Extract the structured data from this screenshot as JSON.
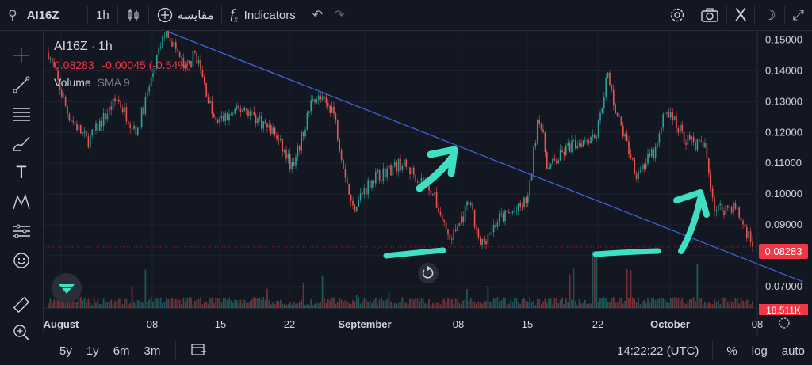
{
  "topbar": {
    "symbol": "AI16Z",
    "interval": "1h",
    "compare_label": "مقایسه",
    "indicators_label": "Indicators",
    "x_label": "X"
  },
  "legend": {
    "symbol": "AI16Z",
    "interval": "1h",
    "price": "0.08283",
    "change": "-0.00045 (-0.54%)",
    "volume_label": "Volume",
    "sma_label": "SMA 9"
  },
  "price_tag": "0.08283",
  "volume_tag": "18.511K",
  "bottombar": {
    "ranges": [
      "5y",
      "1y",
      "6m",
      "3m"
    ],
    "time": "14:22:22 (UTC)",
    "percent": "%",
    "log": "log",
    "auto": "auto"
  },
  "colors": {
    "up": "#26a69a",
    "down": "#ef5350",
    "trendline": "#3d64d4",
    "annotation": "#3ee0c4",
    "last_price": "#f23645"
  },
  "chart_data": {
    "type": "candlestick",
    "title": "AI16Z · 1h",
    "ylim": [
      0.063,
      0.153
    ],
    "y_ticks": [
      "0.15000",
      "0.14000",
      "0.13000",
      "0.12000",
      "0.11000",
      "0.10000",
      "0.09000",
      "0.08000",
      "0.07000"
    ],
    "x_ticks": [
      "August",
      "08",
      "15",
      "22",
      "September",
      "08",
      "15",
      "22",
      "October",
      "08"
    ],
    "last_price": 0.08283,
    "approx_close_path": [
      {
        "t": "Aug 01",
        "v": 0.146
      },
      {
        "t": "Aug 03",
        "v": 0.126
      },
      {
        "t": "Aug 05",
        "v": 0.117
      },
      {
        "t": "Aug 08",
        "v": 0.131
      },
      {
        "t": "Aug 10",
        "v": 0.12
      },
      {
        "t": "Aug 12",
        "v": 0.143
      },
      {
        "t": "Aug 13",
        "v": 0.154
      },
      {
        "t": "Aug 15",
        "v": 0.14
      },
      {
        "t": "Aug 16",
        "v": 0.146
      },
      {
        "t": "Aug 18",
        "v": 0.123
      },
      {
        "t": "Aug 21",
        "v": 0.128
      },
      {
        "t": "Aug 24",
        "v": 0.12
      },
      {
        "t": "Aug 26",
        "v": 0.108
      },
      {
        "t": "Aug 28",
        "v": 0.132
      },
      {
        "t": "Aug 30",
        "v": 0.128
      },
      {
        "t": "Sep 01",
        "v": 0.095
      },
      {
        "t": "Sep 03",
        "v": 0.105
      },
      {
        "t": "Sep 06",
        "v": 0.11
      },
      {
        "t": "Sep 09",
        "v": 0.102
      },
      {
        "t": "Sep 11",
        "v": 0.085
      },
      {
        "t": "Sep 13",
        "v": 0.097
      },
      {
        "t": "Sep 14",
        "v": 0.083
      },
      {
        "t": "Sep 16",
        "v": 0.092
      },
      {
        "t": "Sep 18",
        "v": 0.095
      },
      {
        "t": "Sep 19",
        "v": 0.099
      },
      {
        "t": "Sep 20",
        "v": 0.127
      },
      {
        "t": "Sep 21",
        "v": 0.108
      },
      {
        "t": "Sep 23",
        "v": 0.115
      },
      {
        "t": "Sep 26",
        "v": 0.12
      },
      {
        "t": "Sep 27",
        "v": 0.139
      },
      {
        "t": "Sep 28",
        "v": 0.126
      },
      {
        "t": "Sep 30",
        "v": 0.107
      },
      {
        "t": "Oct 02",
        "v": 0.114
      },
      {
        "t": "Oct 03",
        "v": 0.128
      },
      {
        "t": "Oct 05",
        "v": 0.118
      },
      {
        "t": "Oct 07",
        "v": 0.115
      },
      {
        "t": "Oct 08",
        "v": 0.095
      },
      {
        "t": "Oct 10",
        "v": 0.096
      },
      {
        "t": "Oct 12",
        "v": 0.083
      }
    ],
    "trendline": [
      {
        "t": "Aug 13",
        "v": 0.153
      },
      {
        "t": "Oct 17",
        "v": 0.0715
      }
    ],
    "volume": {
      "label": "Volume",
      "sma": 9,
      "last": "18.511K"
    }
  }
}
